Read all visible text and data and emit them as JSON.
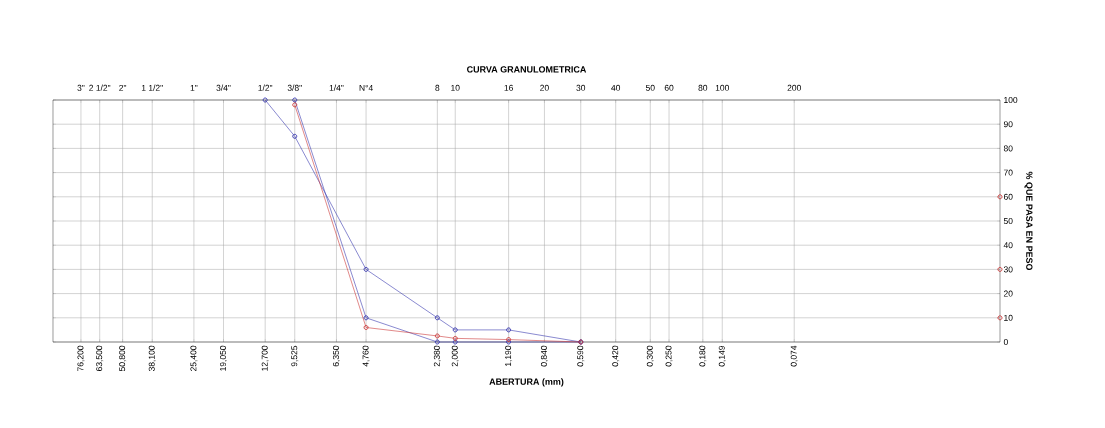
{
  "chart_data": {
    "type": "line",
    "title": "CURVA GRANULOMETRICA",
    "xlabel": "ABERTURA (mm)",
    "ylabel": "% QUE PASA EN PESO",
    "log": "x",
    "grid": true,
    "marker": "circle",
    "line_style": "solid",
    "xlim": [
      100,
      0.01
    ],
    "ylim": [
      0,
      100
    ],
    "yticks": [
      0,
      10,
      20,
      30,
      40,
      50,
      60,
      70,
      80,
      90,
      100
    ],
    "xticks": [
      {
        "value": 76.2,
        "label": "76,200"
      },
      {
        "value": 63.5,
        "label": "63,500"
      },
      {
        "value": 50.8,
        "label": "50,800"
      },
      {
        "value": 38.1,
        "label": "38,100"
      },
      {
        "value": 25.4,
        "label": "25,400"
      },
      {
        "value": 19.05,
        "label": "19,050"
      },
      {
        "value": 12.7,
        "label": "12,700"
      },
      {
        "value": 9.525,
        "label": "9,525"
      },
      {
        "value": 6.35,
        "label": "6,350"
      },
      {
        "value": 4.76,
        "label": "4,760"
      },
      {
        "value": 2.38,
        "label": "2,380"
      },
      {
        "value": 2.0,
        "label": "2,000"
      },
      {
        "value": 1.19,
        "label": "1,190"
      },
      {
        "value": 0.84,
        "label": "0,840"
      },
      {
        "value": 0.59,
        "label": "0,590"
      },
      {
        "value": 0.42,
        "label": "0,420"
      },
      {
        "value": 0.3,
        "label": "0,300"
      },
      {
        "value": 0.25,
        "label": "0,250"
      },
      {
        "value": 0.18,
        "label": "0,180"
      },
      {
        "value": 0.149,
        "label": "0,149"
      },
      {
        "value": 0.074,
        "label": "0,074"
      }
    ],
    "annotations": [
      "3\"",
      "2 1/2\"",
      "2\"",
      "1 1/2\"",
      "1\"",
      "3/4\"",
      "1/2\"",
      "3/8\"",
      "1/4\"",
      "N°4",
      "8",
      "10",
      "16",
      "20",
      "30",
      "40",
      "50",
      "60",
      "80",
      "100",
      "200"
    ],
    "series": [
      {
        "color": "#3b3bb0",
        "x": [
          12.7,
          9.525,
          4.76,
          2.38,
          2.0,
          1.19,
          0.59
        ],
        "values": [
          100,
          85,
          30,
          10,
          5,
          5,
          0
        ]
      },
      {
        "color": "#3b3bb0",
        "x": [
          9.525,
          4.76,
          2.38,
          2.0,
          1.19,
          0.59
        ],
        "values": [
          100,
          10,
          0,
          0,
          0,
          0
        ]
      },
      {
        "color": "#cc3b3b",
        "x": [
          9.525,
          4.76,
          2.38,
          2.0,
          1.19,
          0.59
        ],
        "values": [
          98,
          6,
          2.5,
          1.5,
          1,
          0
        ]
      },
      {
        "type": "scatter",
        "color": "#cc3b3b",
        "x": [
          0.01,
          0.01,
          0.01
        ],
        "values": [
          60,
          30,
          10
        ]
      }
    ]
  }
}
